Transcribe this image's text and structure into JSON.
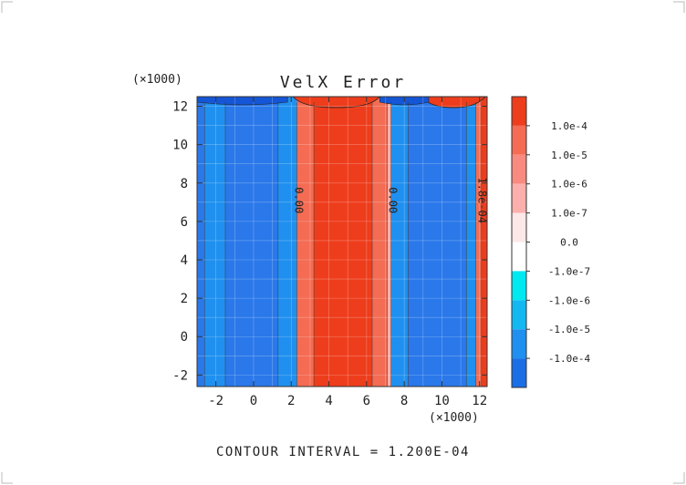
{
  "chart_data": {
    "type": "heatmap",
    "title": "VelX Error",
    "x_multiplier": "(×1000)",
    "y_multiplier": "(×1000)",
    "x_ticks": [
      "-2",
      "0",
      "2",
      "4",
      "6",
      "8",
      "10",
      "12"
    ],
    "y_ticks": [
      "12",
      "10",
      "8",
      "6",
      "4",
      "2",
      "0",
      "-2"
    ],
    "x_range": [
      -3,
      12.4
    ],
    "y_range": [
      -2.6,
      12.5
    ],
    "grid": true,
    "footer": "CONTOUR INTERVAL = 1.200E-04",
    "colorbar": {
      "labels": [
        "1.0e-4",
        "1.0e-5",
        "1.0e-6",
        "1.0e-7",
        "0.0",
        "-1.0e-7",
        "-1.0e-6",
        "-1.0e-5",
        "-1.0e-4"
      ],
      "colors": [
        "#ee3d1c",
        "#f36c53",
        "#f88a80",
        "#fbb0ac",
        "#fde8e8",
        "#ffffff",
        "#00e8f0",
        "#12b8f2",
        "#1f90ef",
        "#1a6fe6"
      ]
    },
    "bands": [
      {
        "x0": -3.0,
        "x1": -2.6,
        "color": "#2a78ea"
      },
      {
        "x0": -2.6,
        "x1": -1.5,
        "color": "#1f90ef"
      },
      {
        "x0": -1.5,
        "x1": 1.3,
        "color": "#2a78ea"
      },
      {
        "x0": 1.3,
        "x1": 2.3,
        "color": "#1f90ef"
      },
      {
        "x0": 2.3,
        "x1": 3.2,
        "color": "#f36c53"
      },
      {
        "x0": 3.2,
        "x1": 6.3,
        "color": "#ee3d1c"
      },
      {
        "x0": 6.3,
        "x1": 7.1,
        "color": "#f36c53"
      },
      {
        "x0": 7.1,
        "x1": 7.3,
        "color": "#fbb0ac"
      },
      {
        "x0": 7.3,
        "x1": 8.2,
        "color": "#1f90ef"
      },
      {
        "x0": 8.2,
        "x1": 11.3,
        "color": "#2a78ea"
      },
      {
        "x0": 11.3,
        "x1": 11.8,
        "color": "#1f90ef"
      },
      {
        "x0": 11.8,
        "x1": 12.1,
        "color": "#f36c53"
      },
      {
        "x0": 12.1,
        "x1": 12.4,
        "color": "#ee3d1c"
      }
    ],
    "contour_labels": [
      {
        "x": 2.2,
        "y": 7.1,
        "text": "0.00"
      },
      {
        "x": 7.2,
        "y": 7.1,
        "text": "0.00"
      },
      {
        "x": 11.95,
        "y": 7.1,
        "text": "1.8e-04"
      }
    ]
  }
}
